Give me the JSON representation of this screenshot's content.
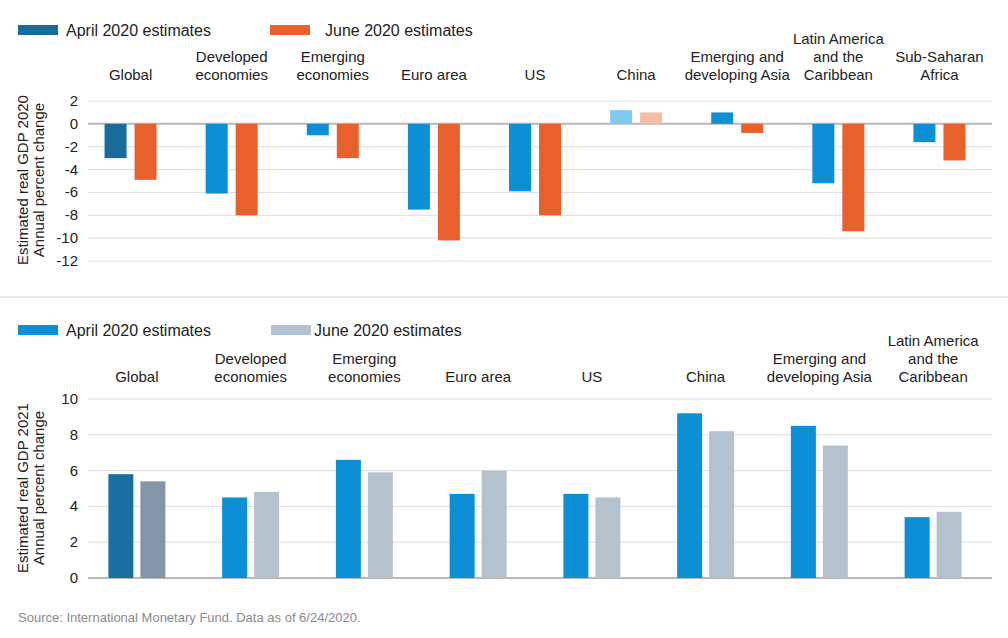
{
  "chart_data": [
    {
      "type": "bar",
      "y_label": "Estimated real GDP 2020\nAnnual percent change",
      "categories": [
        "Global",
        "Developed economies",
        "Emerging economies",
        "Euro area",
        "US",
        "China",
        "Emerging and developing Asia",
        "Latin America and the Caribbean",
        "Sub-Saharan Africa"
      ],
      "series": [
        {
          "name": "April 2020 estimates",
          "color": "#176c9c",
          "colors": [
            "#176c9c",
            "#0d8fd6",
            "#0d8fd6",
            "#0d8fd6",
            "#0d8fd6",
            "#7fcaf0",
            "#0d8fd6",
            "#0d8fd6",
            "#0d8fd6"
          ],
          "values": [
            -3.0,
            -6.1,
            -1.0,
            -7.5,
            -5.9,
            1.2,
            1.0,
            -5.2,
            -1.6
          ]
        },
        {
          "name": "June 2020 estimates",
          "color": "#e8612c",
          "colors": [
            "#e8612c",
            "#e8612c",
            "#e8612c",
            "#e8612c",
            "#e8612c",
            "#f5bfa7",
            "#e8612c",
            "#e8612c",
            "#e8612c"
          ],
          "values": [
            -4.9,
            -8.0,
            -3.0,
            -10.2,
            -8.0,
            1.0,
            -0.8,
            -9.4,
            -3.2
          ]
        }
      ],
      "ylim": [
        -12,
        2
      ],
      "yticks": [
        -12,
        -10,
        -8,
        -6,
        -4,
        -2,
        0,
        2
      ],
      "grid": true,
      "legend": "top-left"
    },
    {
      "type": "bar",
      "y_label": "Estimated real GDP 2021\nAnnual percent change",
      "categories": [
        "Global",
        "Developed economies",
        "Emerging economies",
        "Euro area",
        "US",
        "China",
        "Emerging and developing Asia",
        "Latin America and the Caribbean"
      ],
      "series": [
        {
          "name": "April 2020 estimates",
          "color": "#0d8fd6",
          "colors": [
            "#17709f",
            "#0d8fd6",
            "#0d8fd6",
            "#0d8fd6",
            "#0d8fd6",
            "#0d8fd6",
            "#0d8fd6",
            "#0d8fd6"
          ],
          "values": [
            5.8,
            4.5,
            6.6,
            4.7,
            4.7,
            9.2,
            8.5,
            3.4
          ]
        },
        {
          "name": "June 2020 estimates",
          "color": "#b3c2cd",
          "colors": [
            "#8495a7",
            "#b3c2cd",
            "#b3c2cd",
            "#b3c2cd",
            "#b3c2cd",
            "#b3c2cd",
            "#b3c2cd",
            "#b3c2cd"
          ],
          "values": [
            5.4,
            4.8,
            5.9,
            6.0,
            4.5,
            8.2,
            7.4,
            3.7
          ]
        }
      ],
      "ylim": [
        0,
        10
      ],
      "yticks": [
        0,
        2,
        4,
        6,
        8,
        10
      ],
      "grid": true,
      "legend": "top-left",
      "source": "Source: International Monetary Fund. Data as of 6/24/2020."
    }
  ]
}
